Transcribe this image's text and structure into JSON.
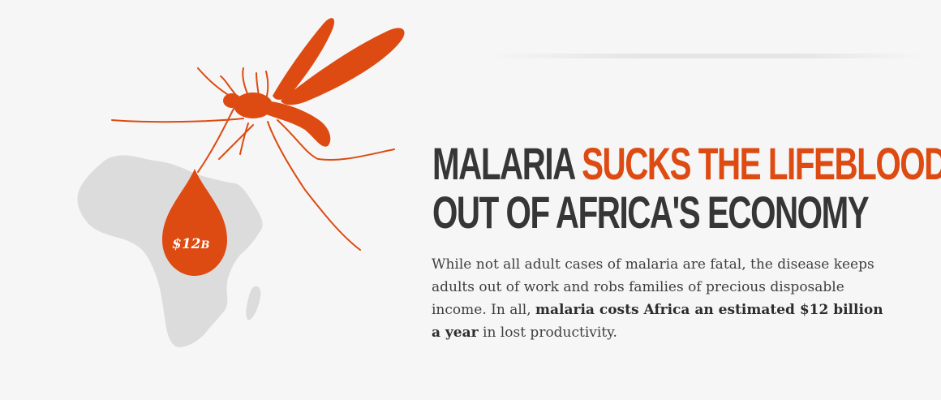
{
  "colors": {
    "accent": "#dd4b12",
    "text": "#363636",
    "map": "#dcdcdc",
    "background": "#f6f6f6"
  },
  "illustration": {
    "mosquito_icon": "mosquito-icon",
    "africa_map": "africa-map",
    "drop": {
      "amount": "$12",
      "unit": "B"
    }
  },
  "headline": {
    "line1_plain": "MALARIA ",
    "line1_accent": "SUCKS THE LIFEBLOOD",
    "line2": "OUT OF AFRICA'S ECONOMY"
  },
  "body": {
    "text_before": "While not all adult cases of malaria are fatal, the disease keeps adults out of work and robs families of precious disposable income. In all, ",
    "bold": "malaria costs Africa an estimated $12 billion a year",
    "text_after": " in lost productivity."
  }
}
